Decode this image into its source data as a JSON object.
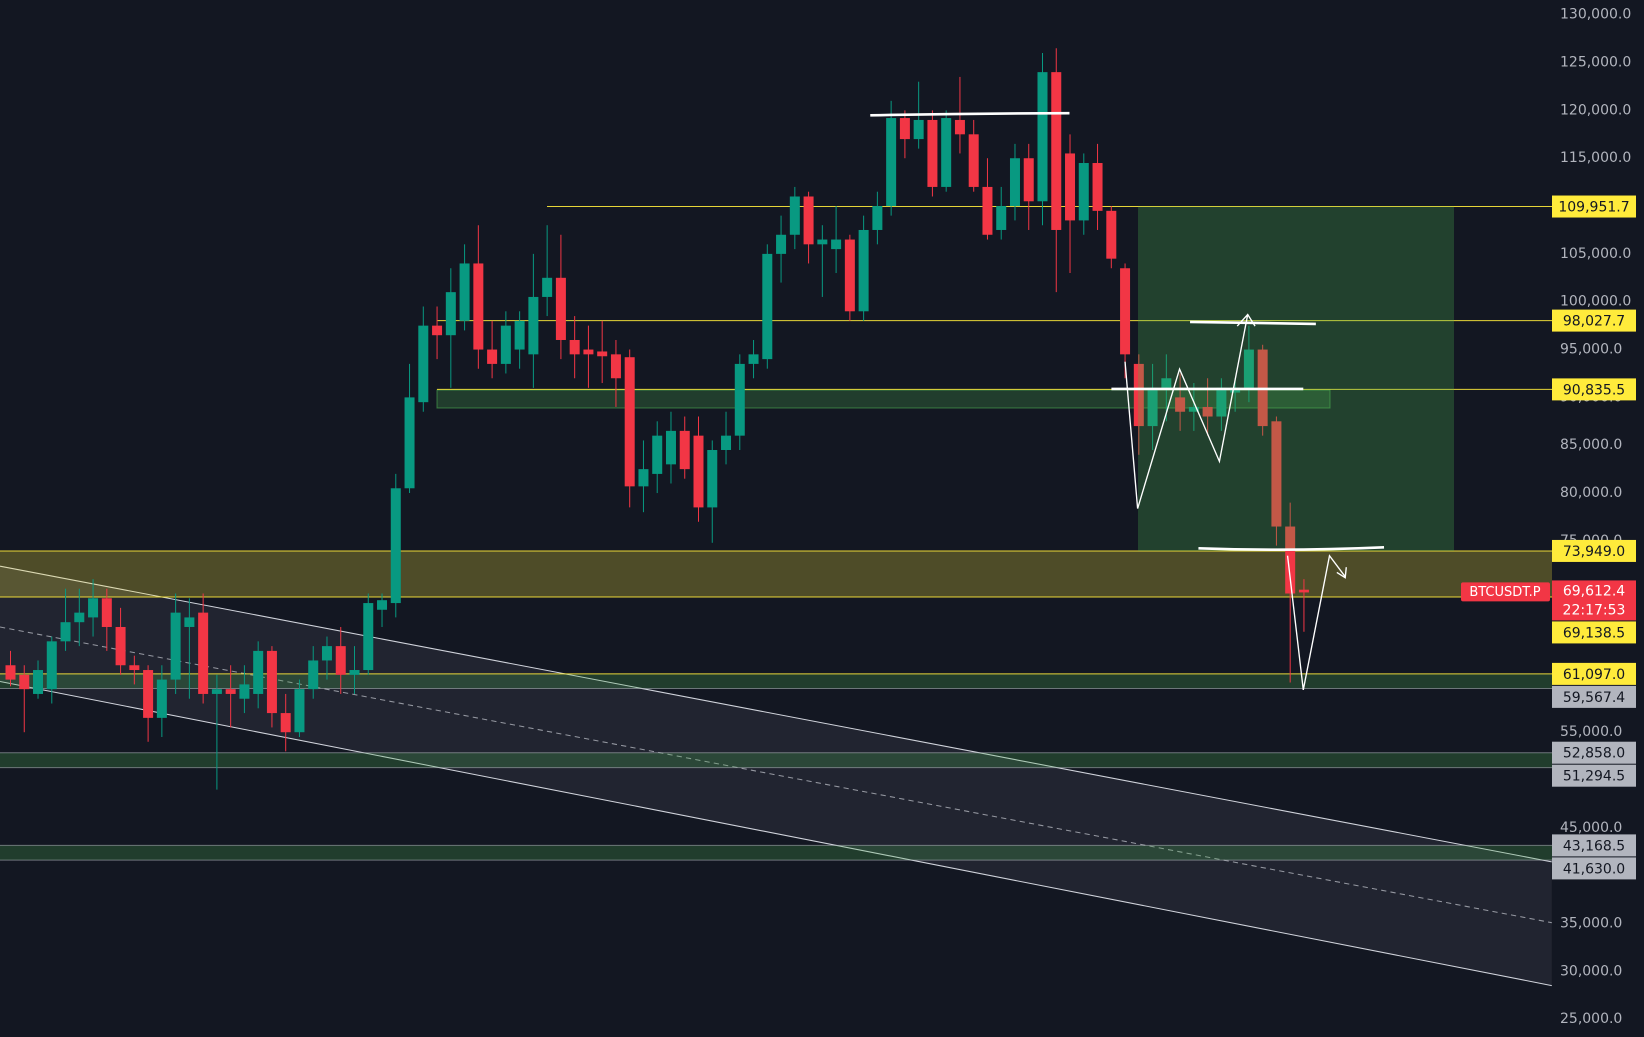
{
  "chart_data": {
    "type": "candlestick",
    "symbol": "BTCUSDT.P",
    "countdown": "22:17:53",
    "current_price": {
      "value": 69612.4,
      "label": "69,612.4"
    },
    "up_color": "#089981",
    "down_color": "#f23645",
    "ylim": [
      23140,
      131540
    ],
    "yticks": [
      {
        "value": 130000,
        "label": "130,000.0"
      },
      {
        "value": 125000,
        "label": "125,000.0"
      },
      {
        "value": 120000,
        "label": "120,000.0"
      },
      {
        "value": 115000,
        "label": "115,000.0"
      },
      {
        "value": 105000,
        "label": "105,000.0"
      },
      {
        "value": 100000,
        "label": "100,000.0"
      },
      {
        "value": 95000,
        "label": "95,000.0"
      },
      {
        "value": 90000,
        "label": "90,000.0"
      },
      {
        "value": 85000,
        "label": "85,000.0"
      },
      {
        "value": 80000,
        "label": "80,000.0"
      },
      {
        "value": 75000,
        "label": "75,000.0"
      },
      {
        "value": 55000,
        "label": "55,000.0"
      },
      {
        "value": 45000,
        "label": "45,000.0"
      },
      {
        "value": 35000,
        "label": "35,000.0"
      },
      {
        "value": 30000,
        "label": "30,000.0"
      },
      {
        "value": 25000,
        "label": "25,000.0"
      }
    ],
    "grid": false,
    "levels": [
      {
        "value": 109951.7,
        "label": "109,951.7",
        "color": "#ffeb3b"
      },
      {
        "value": 98027.7,
        "label": "98,027.7",
        "color": "#ffeb3b"
      },
      {
        "value": 90835.5,
        "label": "90,835.5",
        "color": "#ffeb3b"
      },
      {
        "value": 73949.0,
        "label": "73,949.0",
        "color": "#ffeb3b"
      },
      {
        "value": 69138.5,
        "label": "69,138.5",
        "color": "#ffeb3b"
      },
      {
        "value": 61097.0,
        "label": "61,097.0",
        "color": "#ffeb3b"
      },
      {
        "value": 59567.4,
        "label": "59,567.4",
        "color": "#b2b5be"
      },
      {
        "value": 52858.0,
        "label": "52,858.0",
        "color": "#b2b5be"
      },
      {
        "value": 51294.5,
        "label": "51,294.5",
        "color": "#b2b5be"
      },
      {
        "value": 43168.5,
        "label": "43,168.5",
        "color": "#b2b5be"
      },
      {
        "value": 41630.0,
        "label": "41,630.0",
        "color": "#b2b5be"
      }
    ],
    "ohlc": [
      [
        62000,
        63500,
        59800,
        60500
      ],
      [
        61000,
        62000,
        55000,
        59500
      ],
      [
        59000,
        62500,
        58500,
        61500
      ],
      [
        59500,
        65000,
        58000,
        64500
      ],
      [
        64500,
        70000,
        63500,
        66500
      ],
      [
        66500,
        70000,
        64000,
        67500
      ],
      [
        67000,
        71000,
        65000,
        69000
      ],
      [
        69000,
        70000,
        63500,
        66000
      ],
      [
        66000,
        68000,
        61000,
        62000
      ],
      [
        62000,
        63000,
        60000,
        61500
      ],
      [
        61500,
        62000,
        54000,
        56500
      ],
      [
        56500,
        62000,
        54500,
        60500
      ],
      [
        60500,
        69500,
        59000,
        67500
      ],
      [
        66000,
        69000,
        58500,
        67000
      ],
      [
        67500,
        69500,
        58000,
        59000
      ],
      [
        59000,
        61000,
        49000,
        59500
      ],
      [
        59500,
        62000,
        55500,
        59000
      ],
      [
        58500,
        62000,
        57000,
        60000
      ],
      [
        59000,
        64500,
        57500,
        63500
      ],
      [
        63500,
        64000,
        55500,
        57000
      ],
      [
        57000,
        59000,
        53000,
        55000
      ],
      [
        55000,
        60500,
        54500,
        59500
      ],
      [
        59500,
        64000,
        58500,
        62500
      ],
      [
        62500,
        65000,
        60500,
        64000
      ],
      [
        64000,
        66000,
        59000,
        61000
      ],
      [
        61000,
        64000,
        59000,
        61500
      ],
      [
        61500,
        69500,
        61000,
        68500
      ],
      [
        67800,
        69500,
        66000,
        68800
      ],
      [
        68500,
        82000,
        67000,
        80500
      ],
      [
        80500,
        93500,
        80000,
        90000
      ],
      [
        89500,
        99500,
        88500,
        97500
      ],
      [
        97500,
        99500,
        94000,
        96500
      ],
      [
        96500,
        103500,
        91000,
        101000
      ],
      [
        98000,
        106000,
        97000,
        104000
      ],
      [
        104000,
        108000,
        93000,
        95000
      ],
      [
        95000,
        98000,
        92000,
        93500
      ],
      [
        93500,
        99000,
        92500,
        97500
      ],
      [
        95000,
        99000,
        93000,
        98000
      ],
      [
        94500,
        105000,
        91000,
        100500
      ],
      [
        100500,
        108000,
        98500,
        102500
      ],
      [
        102500,
        107000,
        94000,
        96000
      ],
      [
        96000,
        98500,
        92000,
        94500
      ],
      [
        95000,
        97500,
        91000,
        94500
      ],
      [
        94800,
        98000,
        91500,
        94300
      ],
      [
        94500,
        96000,
        89000,
        92000
      ],
      [
        94200,
        95000,
        78500,
        80700
      ],
      [
        80700,
        85500,
        78000,
        82500
      ],
      [
        82000,
        87500,
        80000,
        86000
      ],
      [
        83000,
        88500,
        81000,
        86500
      ],
      [
        86500,
        88000,
        81500,
        82500
      ],
      [
        86000,
        88000,
        77000,
        78500
      ],
      [
        78500,
        85500,
        74800,
        84500
      ],
      [
        84500,
        88500,
        83000,
        86000
      ],
      [
        86000,
        94500,
        84500,
        93500
      ],
      [
        93500,
        96000,
        92000,
        94500
      ],
      [
        94000,
        106000,
        93000,
        105000
      ],
      [
        105000,
        109000,
        102000,
        107000
      ],
      [
        107000,
        112000,
        105500,
        111000
      ],
      [
        111000,
        111500,
        104000,
        106000
      ],
      [
        106000,
        108000,
        100500,
        106500
      ],
      [
        105500,
        110000,
        103000,
        106500
      ],
      [
        106500,
        107000,
        98000,
        99000
      ],
      [
        99000,
        109000,
        98000,
        107500
      ],
      [
        107500,
        111500,
        106000,
        110000
      ],
      [
        110000,
        121000,
        109000,
        119200
      ],
      [
        119200,
        120000,
        115000,
        117000
      ],
      [
        117000,
        123000,
        116000,
        119000
      ],
      [
        119000,
        120000,
        111000,
        112000
      ],
      [
        112000,
        120000,
        111500,
        119200
      ],
      [
        119000,
        123500,
        115500,
        117500
      ],
      [
        117500,
        119000,
        111500,
        112000
      ],
      [
        112000,
        115000,
        106500,
        107000
      ],
      [
        107500,
        112000,
        106500,
        110000
      ],
      [
        110000,
        116500,
        108500,
        115000
      ],
      [
        115000,
        116500,
        107500,
        110500
      ],
      [
        110500,
        126000,
        108000,
        124000
      ],
      [
        124000,
        126500,
        101000,
        107500
      ],
      [
        115500,
        117500,
        103000,
        108500
      ],
      [
        108500,
        115500,
        107000,
        114500
      ],
      [
        114500,
        116500,
        107500,
        109500
      ],
      [
        109500,
        110000,
        103500,
        104500
      ],
      [
        103500,
        104000,
        92000,
        94500
      ],
      [
        93500,
        94500,
        84000,
        87000
      ],
      [
        87000,
        93500,
        84500,
        91000
      ],
      [
        91000,
        94500,
        87500,
        92000
      ],
      [
        90000,
        92500,
        86500,
        88500
      ],
      [
        88500,
        91500,
        86500,
        89000
      ],
      [
        89000,
        92000,
        86000,
        88000
      ],
      [
        88000,
        92000,
        86500,
        91000
      ],
      [
        90500,
        92000,
        88500,
        91000
      ],
      [
        91000,
        97500,
        89500,
        95000
      ],
      [
        95000,
        95500,
        86000,
        87000
      ],
      [
        87500,
        88000,
        74500,
        76500
      ],
      [
        76500,
        79000,
        60200,
        69500
      ],
      [
        69900,
        71000,
        65500,
        69612.4
      ]
    ]
  }
}
